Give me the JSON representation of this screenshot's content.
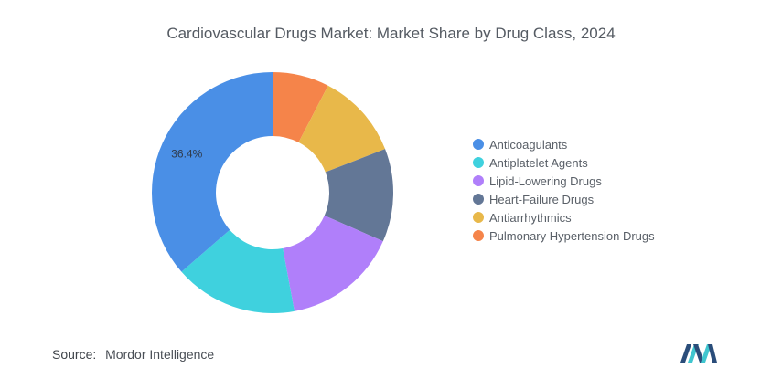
{
  "title": "Cardiovascular Drugs Market: Market Share by Drug Class, 2024",
  "chart_data": {
    "type": "pie",
    "title": "Cardiovascular Drugs Market: Market Share by Drug Class, 2024",
    "series": [
      {
        "name": "Anticoagulants",
        "value": 36.4,
        "color": "#4a8fe6"
      },
      {
        "name": "Antiplatelet Agents",
        "value": 16.5,
        "color": "#3fd1de"
      },
      {
        "name": "Lipid-Lowering Drugs",
        "value": 15.5,
        "color": "#b07ffa"
      },
      {
        "name": "Heart-Failure Drugs",
        "value": 12.5,
        "color": "#637796"
      },
      {
        "name": "Antiarrhythmics",
        "value": 11.5,
        "color": "#e8b84a"
      },
      {
        "name": "Pulmonary Hypertension Drugs",
        "value": 7.6,
        "color": "#f5844a"
      }
    ],
    "data_labels": [
      {
        "series": "Anticoagulants",
        "text": "36.4%"
      }
    ],
    "donut": true,
    "start": "top, clockwise starting with Pulmonary Hypertension Drugs",
    "legend_position": "right"
  },
  "source": {
    "label": "Source:",
    "text": "Mordor Intelligence"
  },
  "logo": {
    "icon": "mordor-intelligence-logo",
    "colors": [
      "#2a4d7a",
      "#3fc6cf"
    ]
  }
}
